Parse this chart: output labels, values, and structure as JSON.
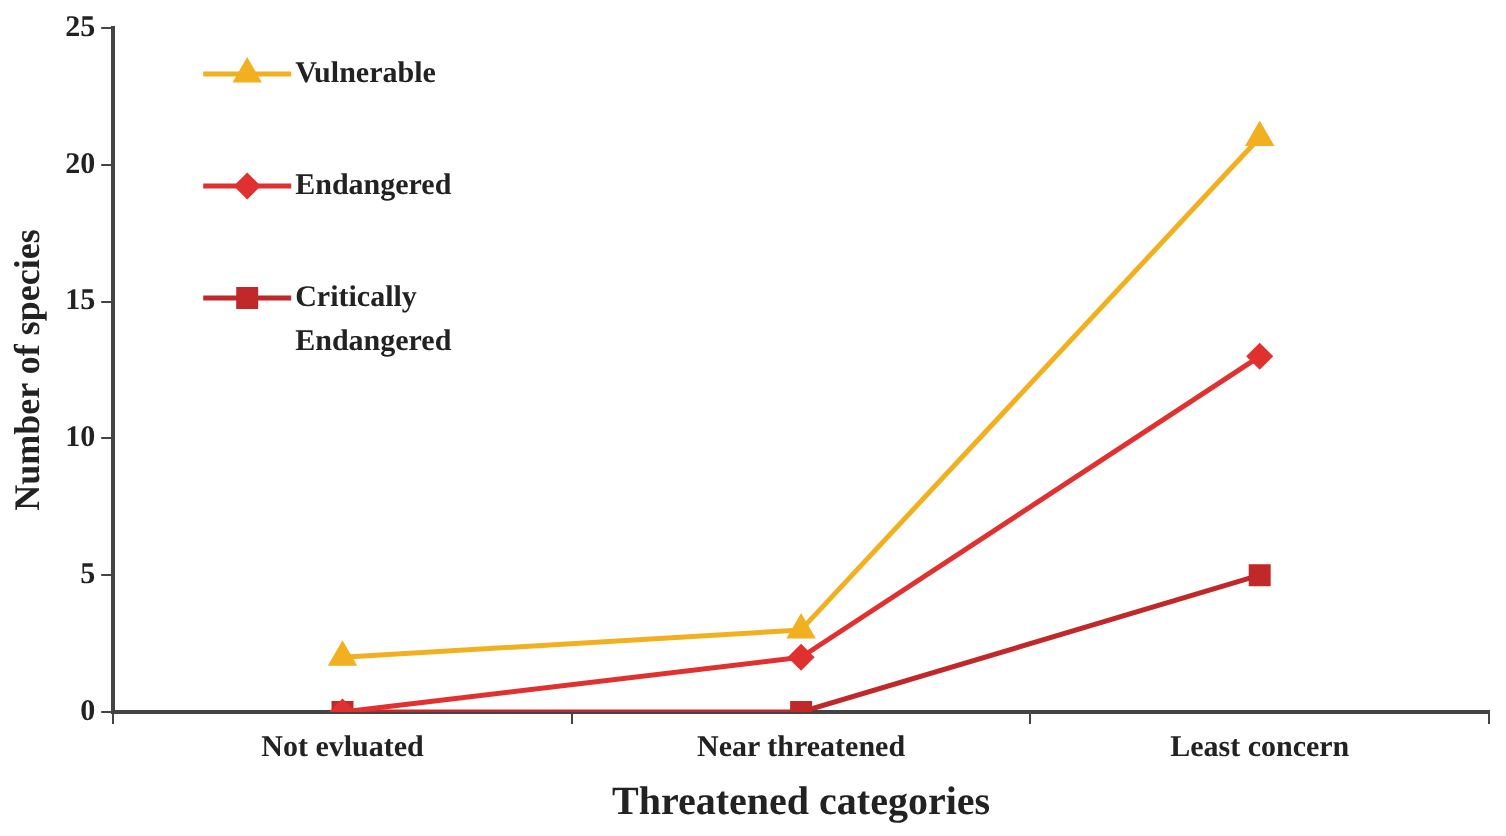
{
  "chart_data": {
    "type": "line",
    "xlabel": "Threatened categories",
    "ylabel": "Number of species",
    "categories": [
      "Not evluated",
      "Near threatened",
      "Least concern"
    ],
    "ylim": [
      0,
      25
    ],
    "yticks": [
      0,
      5,
      10,
      15,
      20,
      25
    ],
    "grid": false,
    "legend": "top left",
    "series": [
      {
        "name": "Vulnerable",
        "color": "#f0b020",
        "marker": "triangle",
        "values": [
          2,
          3,
          21
        ]
      },
      {
        "name": "Endangered",
        "color": "#e03030",
        "marker": "diamond",
        "values": [
          0,
          2,
          13
        ]
      },
      {
        "name": "Critically Endangered",
        "color": "#c0282a",
        "marker": "square",
        "values": [
          0,
          0,
          5
        ]
      }
    ]
  }
}
